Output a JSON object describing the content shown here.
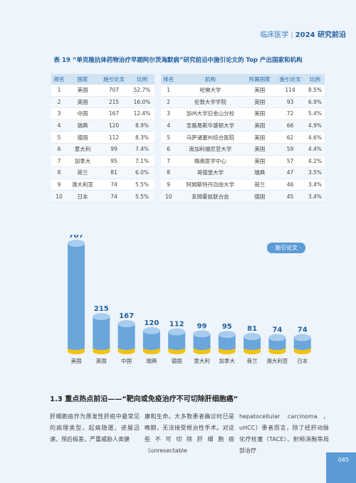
{
  "header": {
    "section": "临床医学",
    "subtitle": "2024 研究前沿"
  },
  "table_title": "表 19 “单克隆抗体药物治疗早期阿尔茨海默病”研究前沿中施引论文的 Top 产出国家和机构",
  "left_table": {
    "headers": [
      "排名",
      "国家",
      "施引论文",
      "比例"
    ],
    "rows": [
      [
        "1",
        "美国",
        "707",
        "52.7%"
      ],
      [
        "2",
        "英国",
        "215",
        "16.0%"
      ],
      [
        "3",
        "中国",
        "167",
        "12.4%"
      ],
      [
        "4",
        "瑞典",
        "120",
        "8.9%"
      ],
      [
        "5",
        "德国",
        "112",
        "8.3%"
      ],
      [
        "6",
        "意大利",
        "99",
        "7.4%"
      ],
      [
        "7",
        "加拿大",
        "95",
        "7.1%"
      ],
      [
        "8",
        "荷兰",
        "81",
        "6.0%"
      ],
      [
        "9",
        "澳大利亚",
        "74",
        "5.5%"
      ],
      [
        "10",
        "日本",
        "74",
        "5.5%"
      ]
    ]
  },
  "right_table": {
    "headers": [
      "排名",
      "机构",
      "所属国家",
      "施引论文",
      "比例"
    ],
    "rows": [
      [
        "1",
        "哈佛大学",
        "美国",
        "114",
        "8.5%"
      ],
      [
        "2",
        "伦敦大学学院",
        "英国",
        "93",
        "6.9%"
      ],
      [
        "3",
        "加州大学旧金山分校",
        "美国",
        "72",
        "5.4%"
      ],
      [
        "4",
        "圣路易斯华盛顿大学",
        "美国",
        "66",
        "4.9%"
      ],
      [
        "5",
        "马萨诸塞州综合医院",
        "美国",
        "62",
        "4.6%"
      ],
      [
        "6",
        "南加利福尼亚大学",
        "美国",
        "59",
        "4.4%"
      ],
      [
        "7",
        "梅奥医学中心",
        "美国",
        "57",
        "4.2%"
      ],
      [
        "8",
        "哥德堡大学",
        "瑞典",
        "47",
        "3.5%"
      ],
      [
        "9",
        "阿姆斯特丹自由大学",
        "荷兰",
        "46",
        "3.4%"
      ],
      [
        "10",
        "亥姆霍兹联合会",
        "德国",
        "45",
        "3.4%"
      ]
    ]
  },
  "chart_data": {
    "type": "bar",
    "categories": [
      "美国",
      "英国",
      "中国",
      "瑞典",
      "德国",
      "意大利",
      "加拿大",
      "荷兰",
      "澳大利亚",
      "日本"
    ],
    "values": [
      707,
      215,
      167,
      120,
      112,
      99,
      95,
      81,
      74,
      74
    ],
    "legend": "· 施引论文 ·",
    "ylim": [
      0,
      750
    ],
    "colors": {
      "bar": "#6aa6dc",
      "top": "#a9cdee",
      "base": "#f2c314"
    }
  },
  "section_title": "1.3 重点热点前沿——“靶向或免疫治疗不可切除肝细胞癌”",
  "paragraphs": [
    "肝细胞癌作为原发性肝癌中最常见的病理类型，起病隐匿、进展迅速、预后极差，严重威胁人类健",
    "康和生命。大多数患者确诊时已是晚期，无法接受根治性手术。对这些不可切除肝细胞癌（unresectable",
    "hepatocellular carcinoma，uHCC）患者而言，除了经肝动脉化疗栓塞（TACE）、射频消融等局部治疗"
  ],
  "page_number": "045"
}
